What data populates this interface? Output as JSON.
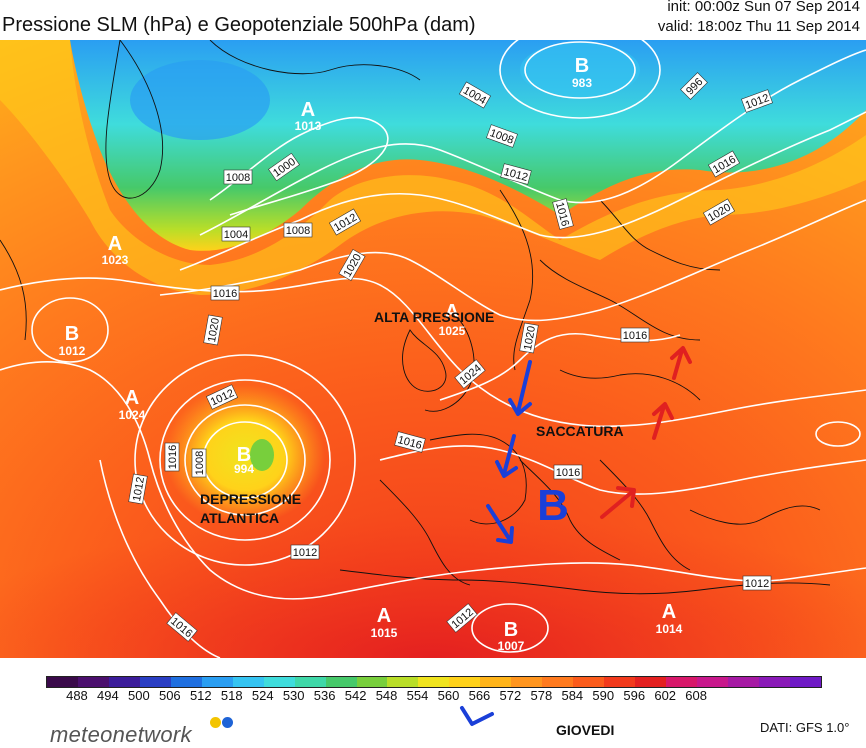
{
  "header": {
    "title": "Pressione SLM (hPa) e Geopotenziale 500hPa (dam)",
    "init": "init: 00:00z Sun 07 Sep 2014",
    "valid": "valid: 18:00z Thu 11 Sep 2014"
  },
  "map": {
    "annotations": {
      "alta_pressione": "ALTA PRESSIONE",
      "saccatura": "SACCATURA",
      "depressione_line1": "DEPRESSIONE",
      "depressione_line2": "ATLANTICA",
      "big_b": "B"
    },
    "pressure_centers": [
      {
        "type": "A",
        "value": "1013"
      },
      {
        "type": "B",
        "value": "983"
      },
      {
        "type": "A",
        "value": "1023"
      },
      {
        "type": "B",
        "value": "1012"
      },
      {
        "type": "A",
        "value": "1024"
      },
      {
        "type": "B",
        "value": "994"
      },
      {
        "type": "A",
        "value": "1025"
      },
      {
        "type": "A",
        "value": "1015"
      },
      {
        "type": "B",
        "value": "1007"
      },
      {
        "type": "A",
        "value": "1014"
      }
    ],
    "isobar_labels": [
      "1000",
      "1008",
      "1004",
      "1008",
      "1012",
      "1004",
      "1008",
      "1012",
      "996",
      "1012",
      "1016",
      "1020",
      "1016",
      "1020",
      "1016",
      "1012",
      "1016",
      "1008",
      "1020",
      "1024",
      "1020",
      "1016",
      "1016",
      "1016",
      "1012",
      "1012",
      "1016",
      "1012",
      "1012"
    ],
    "colors": {
      "arrow_blue": "#1a3fd8",
      "arrow_red": "#e02020",
      "isobar": "#ffffff"
    }
  },
  "colorbar": {
    "ticks": [
      "488",
      "494",
      "500",
      "506",
      "512",
      "518",
      "524",
      "530",
      "536",
      "542",
      "548",
      "554",
      "560",
      "566",
      "572",
      "578",
      "584",
      "590",
      "596",
      "602",
      "608"
    ],
    "colors": [
      "#3a0a4a",
      "#4b0f6e",
      "#3b1c9a",
      "#2a3ec4",
      "#1f6fe0",
      "#2a9ef2",
      "#35c4f2",
      "#3fdcdc",
      "#3fd8a8",
      "#46c96a",
      "#78cf3c",
      "#b9de28",
      "#f0e41e",
      "#ffd21a",
      "#ffb41a",
      "#ff951e",
      "#ff7a1e",
      "#fb5c1c",
      "#f23a1c",
      "#e42020",
      "#d8186a",
      "#c8188c",
      "#a61aa4",
      "#8a1ab8",
      "#6f1ac6",
      "#5a18cc",
      "#4a16d0",
      "#3c14d4",
      "#2e12d6",
      "#2010d8",
      "#1a0ed8",
      "#140cd8",
      "#0e0ad8",
      "#080ad8",
      "#0208d8",
      "#0006d6",
      "#0004d0",
      "#0002c8",
      "#0000c0",
      "#0000b8",
      "#0000b0",
      "#0000a8",
      "#0000a0",
      "#000098",
      "#000090",
      "#000088",
      "#000080",
      "#000078",
      "#000070",
      "#000068",
      "#000060",
      "#000058",
      "#000050",
      "#000048",
      "#000040",
      "#000038",
      "#000030",
      "#000028",
      "#000020",
      "#000018",
      "#000010",
      "#000008"
    ]
  },
  "footer": {
    "logo": "meteonetwork",
    "legend_label": "GIOVEDI",
    "dati": "DATI:  GFS  1.0°"
  }
}
